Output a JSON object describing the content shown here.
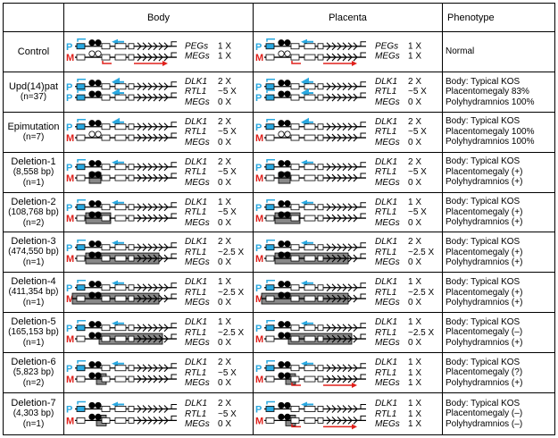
{
  "headers": {
    "body": "Body",
    "placenta": "Placenta",
    "phenotype": "Phenotype"
  },
  "colors": {
    "paternal": "#29a8e0",
    "maternal": "#e0201b",
    "deletion": "#777777"
  },
  "rows": [
    {
      "label": [
        "Control"
      ],
      "body": {
        "ann": [
          [
            "PEGs",
            "1 X"
          ],
          [
            "MEGs",
            "1 X"
          ]
        ]
      },
      "placenta": {
        "ann": [
          [
            "PEGs",
            "1 X"
          ],
          [
            "MEGs",
            "1 X"
          ]
        ]
      },
      "phenotype": [
        "Normal"
      ]
    },
    {
      "label": [
        "Upd(14)pat",
        "(n=37)"
      ],
      "body": {
        "ann": [
          [
            "DLK1",
            "2 X"
          ],
          [
            "RTL1",
            "~5 X"
          ],
          [
            "MEGs",
            "0 X"
          ]
        ]
      },
      "placenta": {
        "ann": [
          [
            "DLK1",
            "2 X"
          ],
          [
            "RTL1",
            "~5 X"
          ],
          [
            "MEGs",
            "0 X"
          ]
        ]
      },
      "phenotype": [
        "Body: Typical KOS",
        "Placentomegaly 83%",
        "Polyhydramnios 100%"
      ]
    },
    {
      "label": [
        "Epimutation",
        "(n=7)"
      ],
      "body": {
        "ann": [
          [
            "DLK1",
            "2 X"
          ],
          [
            "RTL1",
            "~5 X"
          ],
          [
            "MEGs",
            "0 X"
          ]
        ]
      },
      "placenta": {
        "ann": [
          [
            "DLK1",
            "2 X"
          ],
          [
            "RTL1",
            "~5 X"
          ],
          [
            "MEGs",
            "0 X"
          ]
        ]
      },
      "phenotype": [
        "Body: Typical KOS",
        "Placentomegaly 100%",
        "Polyhydramnios 100%"
      ]
    },
    {
      "label": [
        "Deletion-1",
        "(8,558 bp)",
        "(n=1)"
      ],
      "body": {
        "ann": [
          [
            "DLK1",
            "2 X"
          ],
          [
            "RTL1",
            "~5 X"
          ],
          [
            "MEGs",
            "0 X"
          ]
        ]
      },
      "placenta": {
        "ann": [
          [
            "DLK1",
            "2 X"
          ],
          [
            "RTL1",
            "~5 X"
          ],
          [
            "MEGs",
            "0 X"
          ]
        ]
      },
      "phenotype": [
        "Body: Typical KOS",
        "Placentomegaly (+)",
        "Polyhydramnios (+)"
      ]
    },
    {
      "label": [
        "Deletion-2",
        "(108,768 bp)",
        "(n=2)"
      ],
      "body": {
        "ann": [
          [
            "DLK1",
            "1 X"
          ],
          [
            "RTL1",
            "~5 X"
          ],
          [
            "MEGs",
            "0 X"
          ]
        ]
      },
      "placenta": {
        "ann": [
          [
            "DLK1",
            "1 X"
          ],
          [
            "RTL1",
            "~5 X"
          ],
          [
            "MEGs",
            "0 X"
          ]
        ]
      },
      "phenotype": [
        "Body: Typical KOS",
        "Placentomegaly (+)",
        "Polyhydramnios (+)"
      ]
    },
    {
      "label": [
        "Deletion-3",
        "(474,550 bp)",
        "(n=1)"
      ],
      "body": {
        "ann": [
          [
            "DLK1",
            "2 X"
          ],
          [
            "RTL1",
            "~2.5 X"
          ],
          [
            "MEGs",
            "0 X"
          ]
        ]
      },
      "placenta": {
        "ann": [
          [
            "DLK1",
            "2 X"
          ],
          [
            "RTL1",
            "~2.5 X"
          ],
          [
            "MEGs",
            "0 X"
          ]
        ]
      },
      "phenotype": [
        "Body: Typical KOS",
        "Placentomegaly (+)",
        "Polyhydramnios (+)"
      ]
    },
    {
      "label": [
        "Deletion-4",
        "(411,354 bp)",
        "(n=1)"
      ],
      "body": {
        "ann": [
          [
            "DLK1",
            "1 X"
          ],
          [
            "RTL1",
            "~2.5 X"
          ],
          [
            "MEGs",
            "0 X"
          ]
        ]
      },
      "placenta": {
        "ann": [
          [
            "DLK1",
            "1 X"
          ],
          [
            "RTL1",
            "~2.5 X"
          ],
          [
            "MEGs",
            "0 X"
          ]
        ]
      },
      "phenotype": [
        "Body: Typical KOS",
        "Placentomegaly (+)",
        "Polyhydramnios (+)"
      ]
    },
    {
      "label": [
        "Deletion-5",
        "(165,153 bp)",
        "(n=1)"
      ],
      "body": {
        "ann": [
          [
            "DLK1",
            "1 X"
          ],
          [
            "RTL1",
            "~2.5 X"
          ],
          [
            "MEGs",
            "0 X"
          ]
        ]
      },
      "placenta": {
        "ann": [
          [
            "DLK1",
            "1 X"
          ],
          [
            "RTL1",
            "~2.5 X"
          ],
          [
            "MEGs",
            "0 X"
          ]
        ]
      },
      "phenotype": [
        "Body: Typical KOS",
        "Placentomegaly (–)",
        "Polyhydramnios (+)"
      ]
    },
    {
      "label": [
        "Deletion-6",
        "(5,823 bp)",
        "(n=2)"
      ],
      "body": {
        "ann": [
          [
            "DLK1",
            "2 X"
          ],
          [
            "RTL1",
            "~5 X"
          ],
          [
            "MEGs",
            "0 X"
          ]
        ]
      },
      "placenta": {
        "ann": [
          [
            "DLK1",
            "1 X"
          ],
          [
            "RTL1",
            "1 X"
          ],
          [
            "MEGs",
            "1 X"
          ]
        ]
      },
      "phenotype": [
        "Body: Typical KOS",
        "Placentomegaly (?)",
        "Polyhydramnios (+)"
      ]
    },
    {
      "label": [
        "Deletion-7",
        "(4,303 bp)",
        "(n=1)"
      ],
      "body": {
        "ann": [
          [
            "DLK1",
            "2 X"
          ],
          [
            "RTL1",
            "~5 X"
          ],
          [
            "MEGs",
            "0 X"
          ]
        ]
      },
      "placenta": {
        "ann": [
          [
            "DLK1",
            "1 X"
          ],
          [
            "RTL1",
            "1 X"
          ],
          [
            "MEGs",
            "1 X"
          ]
        ]
      },
      "phenotype": [
        "Body: Typical KOS",
        "Placentomegaly (–)",
        "Polyhydramnios (–)"
      ]
    }
  ]
}
